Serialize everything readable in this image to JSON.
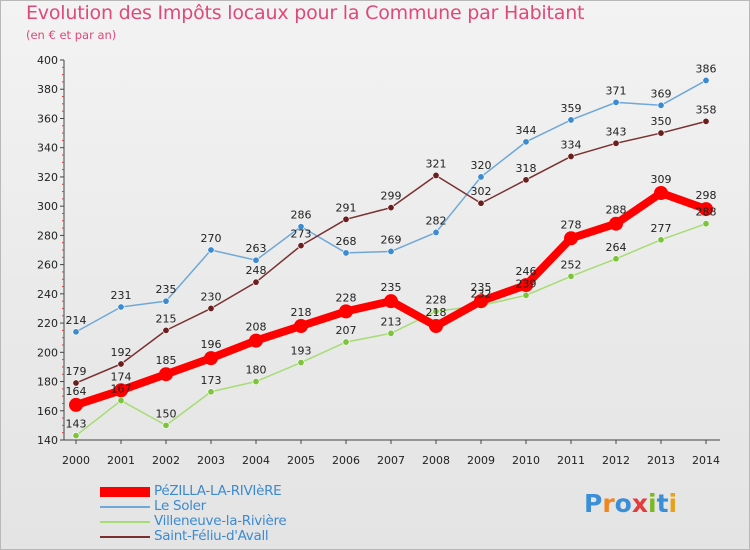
{
  "title": "Evolution des Impôts locaux pour la Commune par Habitant",
  "subtitle": "(en € et par an)",
  "logo": {
    "text": "Proxiti",
    "colors": [
      "#3a8fd6",
      "#f0861f",
      "#3a8fd6",
      "#e33c3c",
      "#7ab824",
      "#3a8fd6",
      "#e8a21a"
    ]
  },
  "chart_data": {
    "type": "line",
    "title": "Evolution des Impôts locaux pour la Commune par Habitant",
    "subtitle": "(en € et par an)",
    "xlabel": "",
    "ylabel": "",
    "ylim": [
      140,
      400
    ],
    "yticks": [
      140,
      160,
      180,
      200,
      220,
      240,
      260,
      280,
      300,
      320,
      340,
      360,
      380,
      400
    ],
    "grid": false,
    "legend": "bottom-left",
    "x": [
      "2000",
      "2001",
      "2002",
      "2003",
      "2004",
      "2005",
      "2006",
      "2007",
      "2008",
      "2009",
      "2010",
      "2011",
      "2012",
      "2013",
      "2014"
    ],
    "series": [
      {
        "name": "PéZILLA-LA-RIVIèRE",
        "color": "#ff0000",
        "marker_color": "#ff0000",
        "emphasis": true,
        "values": [
          164,
          174,
          185,
          196,
          208,
          218,
          228,
          235,
          218,
          235,
          246,
          278,
          288,
          309,
          298
        ]
      },
      {
        "name": "Le Soler",
        "color": "#6fa8d8",
        "marker_color": "#3c8ad0",
        "emphasis": false,
        "values": [
          214,
          231,
          235,
          270,
          263,
          286,
          268,
          269,
          282,
          320,
          344,
          359,
          371,
          369,
          386
        ]
      },
      {
        "name": "Villeneuve-la-Rivière",
        "color": "#a6dc74",
        "marker_color": "#7cc43a",
        "emphasis": false,
        "values": [
          143,
          167,
          150,
          173,
          180,
          193,
          207,
          213,
          228,
          232,
          239,
          252,
          264,
          277,
          288
        ]
      },
      {
        "name": "Saint-Féliu-d'Avall",
        "color": "#7a3030",
        "marker_color": "#6b1e1e",
        "emphasis": false,
        "values": [
          179,
          192,
          215,
          230,
          248,
          273,
          291,
          299,
          321,
          302,
          318,
          334,
          343,
          350,
          358
        ]
      }
    ]
  }
}
